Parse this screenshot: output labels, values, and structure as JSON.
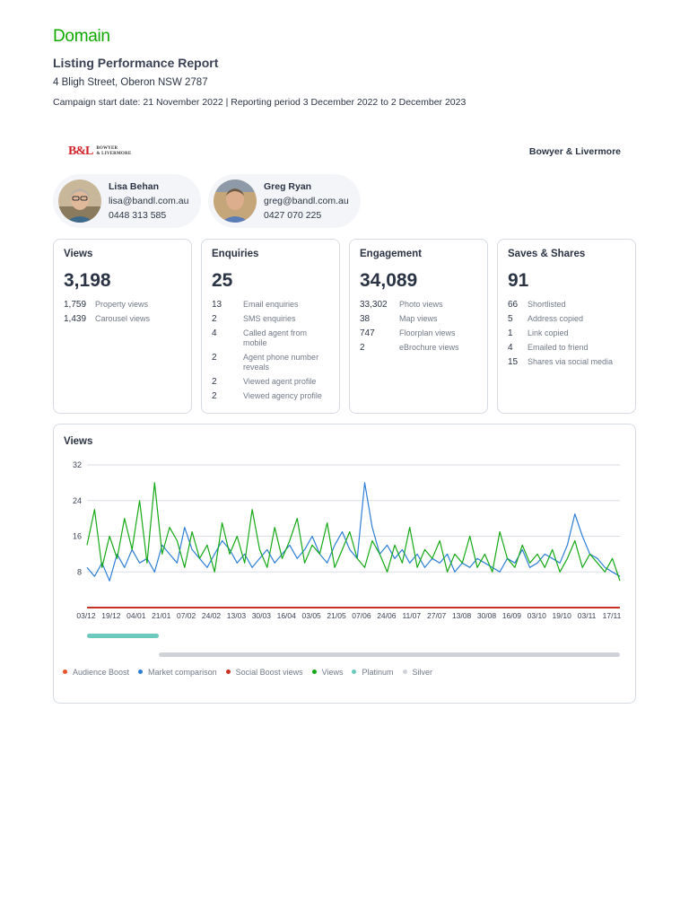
{
  "header": {
    "brand": "Domain",
    "title": "Listing Performance Report",
    "address": "4 Bligh Street, Oberon NSW 2787",
    "campaign": "Campaign start date: 21 November 2022 | Reporting period 3 December 2022 to 2 December 2023"
  },
  "agency": {
    "logo_mark": "B&L",
    "logo_line1": "BOWYER",
    "logo_line2": "& LIVERMORE",
    "name": "Bowyer & Livermore"
  },
  "agents": [
    {
      "name": "Lisa Behan",
      "email": "lisa@bandl.com.au",
      "phone": "0448 313 585"
    },
    {
      "name": "Greg Ryan",
      "email": "greg@bandl.com.au",
      "phone": "0427 070 225"
    }
  ],
  "cards": {
    "views": {
      "title": "Views",
      "value": "3,198",
      "rows": [
        {
          "n": "1,759",
          "label": "Property views"
        },
        {
          "n": "1,439",
          "label": "Carousel views"
        }
      ]
    },
    "enquiries": {
      "title": "Enquiries",
      "value": "25",
      "rows": [
        {
          "n": "13",
          "label": "Email enquiries"
        },
        {
          "n": "2",
          "label": "SMS enquiries"
        },
        {
          "n": "4",
          "label": "Called agent from mobile"
        },
        {
          "n": "2",
          "label": "Agent phone number reveals"
        },
        {
          "n": "2",
          "label": "Viewed agent profile"
        },
        {
          "n": "2",
          "label": "Viewed agency profile"
        }
      ]
    },
    "engagement": {
      "title": "Engagement",
      "value": "34,089",
      "rows": [
        {
          "n": "33,302",
          "label": "Photo views"
        },
        {
          "n": "38",
          "label": "Map views"
        },
        {
          "n": "747",
          "label": "Floorplan views"
        },
        {
          "n": "2",
          "label": "eBrochure views"
        }
      ]
    },
    "saves": {
      "title": "Saves & Shares",
      "value": "91",
      "rows": [
        {
          "n": "66",
          "label": "Shortlisted"
        },
        {
          "n": "5",
          "label": "Address copied"
        },
        {
          "n": "1",
          "label": "Link copied"
        },
        {
          "n": "4",
          "label": "Emailed to friend"
        },
        {
          "n": "15",
          "label": "Shares via social media"
        }
      ]
    }
  },
  "chart_data": {
    "type": "line",
    "title": "Views",
    "ylim": [
      0,
      32
    ],
    "yticks": [
      8,
      16,
      24,
      32
    ],
    "x_tick_labels": [
      "03/12",
      "19/12",
      "04/01",
      "21/01",
      "07/02",
      "24/02",
      "13/03",
      "30/03",
      "16/04",
      "03/05",
      "21/05",
      "07/06",
      "24/06",
      "11/07",
      "27/07",
      "13/08",
      "30/08",
      "16/09",
      "03/10",
      "19/10",
      "03/11",
      "17/11"
    ],
    "grid": true,
    "legend_position": "bottom",
    "series": [
      {
        "name": "Audience Boost",
        "color": "#e8552a",
        "values": [
          0,
          0
        ]
      },
      {
        "name": "Market comparison",
        "color": "#2f7fd6",
        "values": [
          9,
          7,
          10,
          6,
          12,
          9,
          13,
          10,
          11,
          8,
          14,
          12,
          10,
          18,
          13,
          11,
          9,
          12,
          15,
          13,
          10,
          12,
          9,
          11,
          13,
          10,
          12,
          14,
          11,
          13,
          16,
          12,
          10,
          14,
          17,
          13,
          11,
          28,
          18,
          12,
          14,
          11,
          13,
          10,
          12,
          9,
          11,
          10,
          12,
          8,
          10,
          9,
          11,
          10,
          9,
          8,
          11,
          10,
          13,
          9,
          10,
          12,
          11,
          10,
          14,
          21,
          16,
          12,
          11,
          9,
          8,
          7
        ]
      },
      {
        "name": "Social Boost views",
        "color": "#c83223",
        "values": [
          0,
          0
        ]
      },
      {
        "name": "Views",
        "color": "#15a815",
        "values": [
          14,
          22,
          9,
          16,
          11,
          20,
          13,
          24,
          10,
          28,
          12,
          18,
          15,
          9,
          17,
          11,
          14,
          8,
          19,
          12,
          16,
          10,
          22,
          13,
          9,
          18,
          11,
          15,
          20,
          10,
          14,
          12,
          19,
          9,
          13,
          17,
          11,
          9,
          15,
          12,
          8,
          14,
          10,
          18,
          9,
          13,
          11,
          15,
          8,
          12,
          10,
          16,
          9,
          12,
          8,
          17,
          11,
          9,
          14,
          10,
          12,
          9,
          13,
          8,
          11,
          15,
          9,
          12,
          10,
          8,
          11,
          6
        ]
      },
      {
        "name": "Platinum",
        "color": "#6cc9bd",
        "values": [
          1
        ]
      },
      {
        "name": "Silver",
        "color": "#cfd3d8",
        "values": [
          1
        ]
      }
    ]
  }
}
